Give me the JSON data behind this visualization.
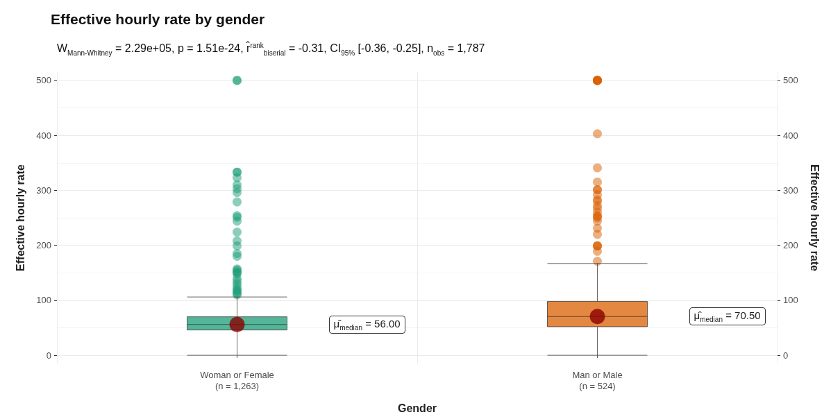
{
  "chart_data": {
    "type": "box",
    "title": "Effective hourly rate by gender",
    "subtitle": "W$_{Mann-Whitney}$ = 2.29e+05, p = 1.51e-24, r̂$^{rank}$$_{biserial}$ = -0.31, CI$_{95%}$ [-0.36, -0.25], n$_{obs}$ = 1,787",
    "xlabel": "Gender",
    "ylabel": "Effective hourly rate",
    "y2label": "Effective hourly rate",
    "categories": [
      "Woman or Female\n(n = 1,263)",
      "Man or Male\n(n = 524)"
    ],
    "colors": [
      "#1b9e77",
      "#d95f02"
    ],
    "boxes": [
      {
        "low": 0,
        "q1": 46,
        "median": 56,
        "q3": 70,
        "high": 106,
        "outliers": [
          500,
          500,
          333,
          333,
          323,
          310,
          303,
          296,
          279,
          254,
          251,
          244,
          224,
          208,
          199,
          185,
          180,
          157,
          155,
          152,
          150,
          148,
          140,
          135,
          130,
          125,
          120,
          118,
          115,
          112,
          110
        ]
      },
      {
        "low": 0,
        "q1": 52,
        "median": 70.5,
        "q3": 98,
        "high": 167,
        "outliers": [
          500,
          500,
          500,
          500,
          500,
          500,
          403,
          341,
          315,
          301,
          301,
          292,
          283,
          280,
          272,
          267,
          260,
          253,
          253,
          250,
          244,
          231,
          220,
          199,
          199,
          199,
          189,
          171
        ]
      }
    ],
    "series": [
      {
        "type": "scatter",
        "color": "#8b0000",
        "x": [
          "Woman or Female\n(n = 1,263)",
          "Man or Male\n(n = 524)"
        ],
        "values": [
          56,
          70.5
        ]
      }
    ],
    "annotations": [
      "μ̂$_{median}$ = 56.00",
      "μ̂$_{median}$ = 70.50"
    ],
    "ylim": [
      -15,
      515
    ],
    "yticks": [
      0,
      100,
      200,
      300,
      400,
      500
    ],
    "y2lim": [
      -15,
      515
    ],
    "y2ticks": [
      0,
      100,
      200,
      300,
      400,
      500
    ],
    "grid": true,
    "marker": "circle"
  }
}
